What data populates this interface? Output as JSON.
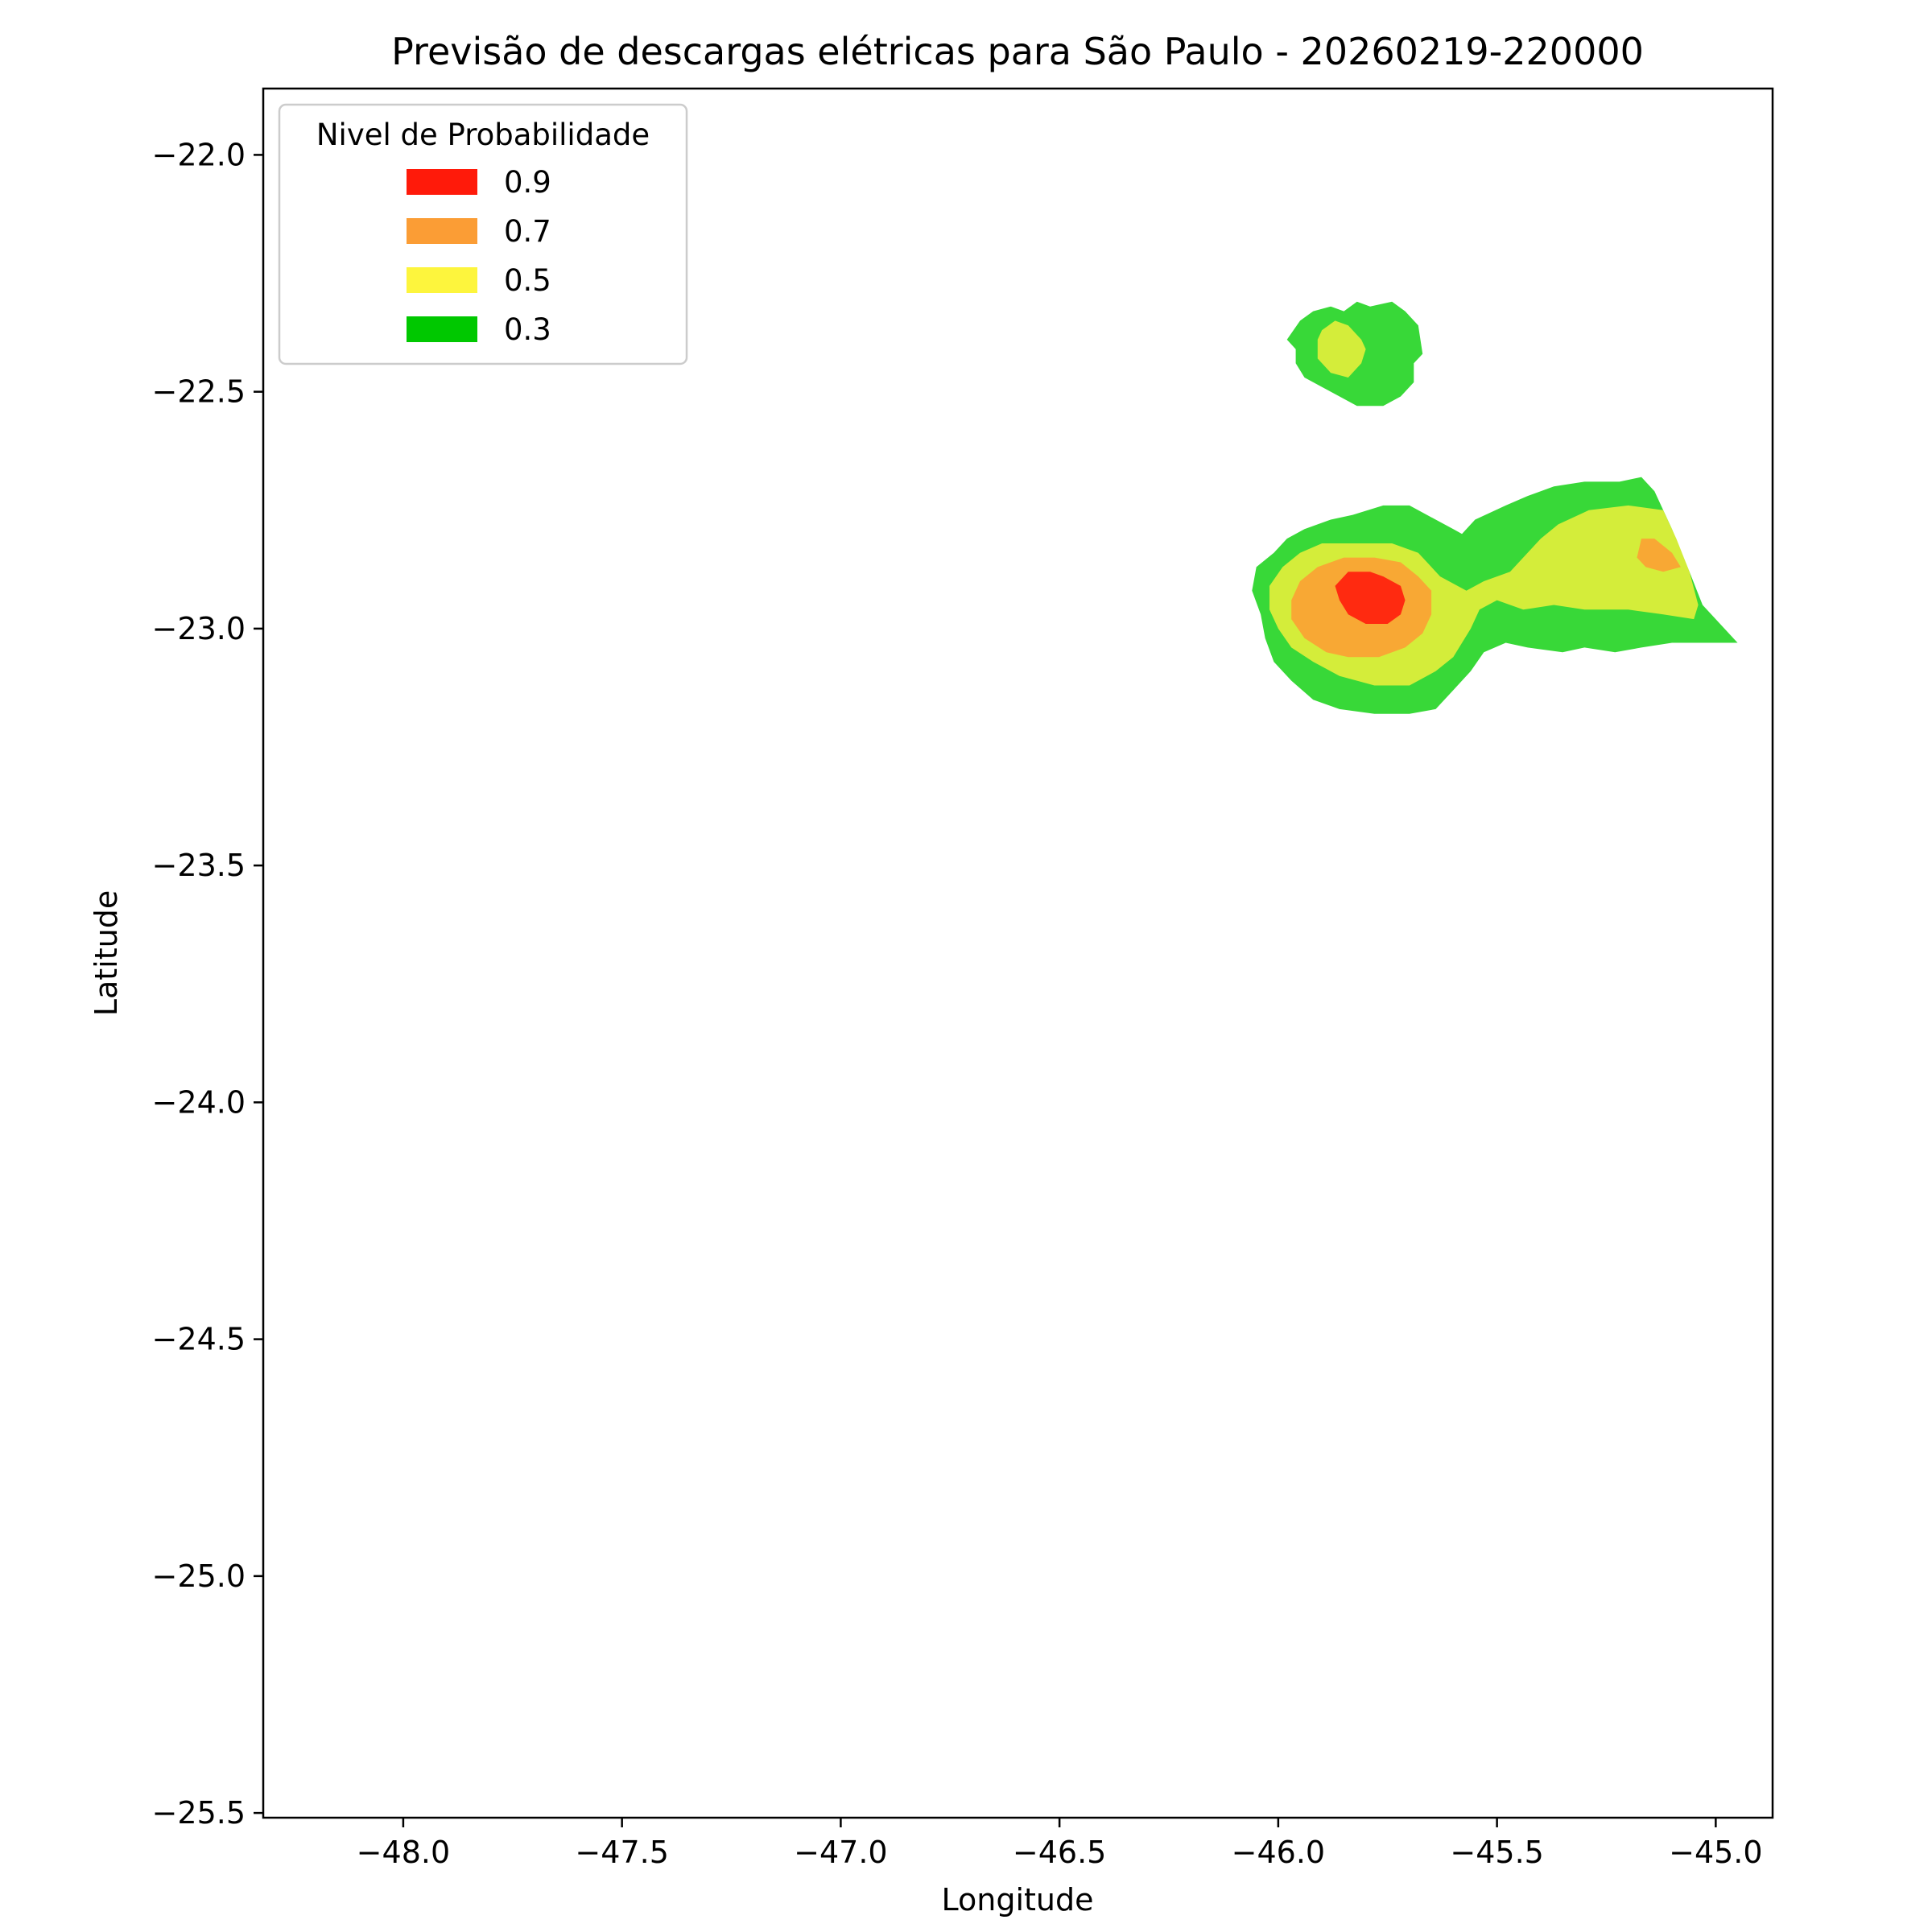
{
  "chart_data": {
    "type": "contour",
    "title": "Previsão de descargas elétricas para São Paulo - 20260219-220000",
    "xlabel": "Longitude",
    "ylabel": "Latitude",
    "xlim": [
      -48.32,
      -44.87
    ],
    "ylim": [
      -25.51,
      -21.86
    ],
    "x_ticks": [
      -48.0,
      -47.5,
      -47.0,
      -46.5,
      -46.0,
      -45.5,
      -45.0
    ],
    "x_tick_labels": [
      "−48.0",
      "−47.5",
      "−47.0",
      "−46.5",
      "−46.0",
      "−45.5",
      "−45.0"
    ],
    "y_ticks": [
      -22.0,
      -22.5,
      -23.0,
      -23.5,
      -24.0,
      -24.5,
      -25.0,
      -25.5
    ],
    "y_tick_labels": [
      "−22.0",
      "−22.5",
      "−23.0",
      "−23.5",
      "−24.0",
      "−24.5",
      "−25.0",
      "−25.5"
    ],
    "grid": false,
    "legend": {
      "title": "Nivel de Probabilidade",
      "placement": "upper-left",
      "entries": [
        {
          "label": "0.9",
          "color": "#ff1a0a"
        },
        {
          "label": "0.7",
          "color": "#fb9d35"
        },
        {
          "label": "0.5",
          "color": "#fdf53d"
        },
        {
          "label": "0.3",
          "color": "#00c800"
        }
      ]
    },
    "fill_colors": {
      "0.3": "#38d838",
      "0.5": "#d4ed3a",
      "0.7": "#f8a834",
      "0.9": "#ff2a10"
    },
    "regions": [
      {
        "level": "0.3",
        "points": [
          [
            -45.98,
            -22.39
          ],
          [
            -45.95,
            -22.35
          ],
          [
            -45.92,
            -22.33
          ],
          [
            -45.88,
            -22.32
          ],
          [
            -45.85,
            -22.33
          ],
          [
            -45.82,
            -22.31
          ],
          [
            -45.79,
            -22.32
          ],
          [
            -45.74,
            -22.31
          ],
          [
            -45.71,
            -22.33
          ],
          [
            -45.68,
            -22.36
          ],
          [
            -45.67,
            -22.42
          ],
          [
            -45.69,
            -22.44
          ],
          [
            -45.69,
            -22.48
          ],
          [
            -45.72,
            -22.51
          ],
          [
            -45.76,
            -22.53
          ],
          [
            -45.82,
            -22.53
          ],
          [
            -45.86,
            -22.51
          ],
          [
            -45.9,
            -22.49
          ],
          [
            -45.94,
            -22.47
          ],
          [
            -45.96,
            -22.44
          ],
          [
            -45.96,
            -22.41
          ]
        ]
      },
      {
        "level": "0.5",
        "points": [
          [
            -45.9,
            -22.37
          ],
          [
            -45.87,
            -22.35
          ],
          [
            -45.84,
            -22.36
          ],
          [
            -45.81,
            -22.39
          ],
          [
            -45.8,
            -22.41
          ],
          [
            -45.81,
            -22.44
          ],
          [
            -45.84,
            -22.47
          ],
          [
            -45.88,
            -22.46
          ],
          [
            -45.91,
            -22.43
          ],
          [
            -45.91,
            -22.39
          ]
        ]
      },
      {
        "level": "0.3",
        "points": [
          [
            -46.06,
            -22.92
          ],
          [
            -46.05,
            -22.87
          ],
          [
            -46.01,
            -22.84
          ],
          [
            -45.98,
            -22.81
          ],
          [
            -45.94,
            -22.79
          ],
          [
            -45.88,
            -22.77
          ],
          [
            -45.83,
            -22.76
          ],
          [
            -45.76,
            -22.74
          ],
          [
            -45.7,
            -22.74
          ],
          [
            -45.64,
            -22.77
          ],
          [
            -45.6,
            -22.79
          ],
          [
            -45.58,
            -22.8
          ],
          [
            -45.55,
            -22.77
          ],
          [
            -45.48,
            -22.74
          ],
          [
            -45.43,
            -22.72
          ],
          [
            -45.37,
            -22.7
          ],
          [
            -45.3,
            -22.69
          ],
          [
            -45.22,
            -22.69
          ],
          [
            -45.17,
            -22.68
          ],
          [
            -45.14,
            -22.71
          ],
          [
            -45.1,
            -22.79
          ],
          [
            -45.06,
            -22.88
          ],
          [
            -45.03,
            -22.95
          ],
          [
            -44.95,
            -23.03
          ],
          [
            -45.04,
            -23.03
          ],
          [
            -45.1,
            -23.03
          ],
          [
            -45.17,
            -23.04
          ],
          [
            -45.23,
            -23.05
          ],
          [
            -45.3,
            -23.04
          ],
          [
            -45.35,
            -23.05
          ],
          [
            -45.43,
            -23.04
          ],
          [
            -45.48,
            -23.03
          ],
          [
            -45.53,
            -23.05
          ],
          [
            -45.56,
            -23.09
          ],
          [
            -45.6,
            -23.13
          ],
          [
            -45.64,
            -23.17
          ],
          [
            -45.7,
            -23.18
          ],
          [
            -45.78,
            -23.18
          ],
          [
            -45.86,
            -23.17
          ],
          [
            -45.92,
            -23.15
          ],
          [
            -45.97,
            -23.11
          ],
          [
            -46.01,
            -23.07
          ],
          [
            -46.03,
            -23.02
          ],
          [
            -46.04,
            -22.97
          ]
        ]
      },
      {
        "level": "0.5",
        "points": [
          [
            -46.02,
            -22.91
          ],
          [
            -45.99,
            -22.87
          ],
          [
            -45.95,
            -22.84
          ],
          [
            -45.9,
            -22.82
          ],
          [
            -45.82,
            -22.82
          ],
          [
            -45.74,
            -22.82
          ],
          [
            -45.68,
            -22.84
          ],
          [
            -45.63,
            -22.89
          ],
          [
            -45.57,
            -22.92
          ],
          [
            -45.53,
            -22.9
          ],
          [
            -45.47,
            -22.88
          ],
          [
            -45.44,
            -22.85
          ],
          [
            -45.4,
            -22.81
          ],
          [
            -45.36,
            -22.78
          ],
          [
            -45.29,
            -22.75
          ],
          [
            -45.2,
            -22.74
          ],
          [
            -45.12,
            -22.75
          ],
          [
            -45.09,
            -22.81
          ],
          [
            -45.06,
            -22.88
          ],
          [
            -45.04,
            -22.95
          ],
          [
            -45.05,
            -22.98
          ],
          [
            -45.12,
            -22.97
          ],
          [
            -45.2,
            -22.96
          ],
          [
            -45.3,
            -22.96
          ],
          [
            -45.37,
            -22.95
          ],
          [
            -45.44,
            -22.96
          ],
          [
            -45.5,
            -22.94
          ],
          [
            -45.54,
            -22.96
          ],
          [
            -45.56,
            -23.0
          ],
          [
            -45.6,
            -23.06
          ],
          [
            -45.64,
            -23.09
          ],
          [
            -45.7,
            -23.12
          ],
          [
            -45.78,
            -23.12
          ],
          [
            -45.86,
            -23.1
          ],
          [
            -45.92,
            -23.07
          ],
          [
            -45.97,
            -23.04
          ],
          [
            -46.0,
            -23.0
          ],
          [
            -46.02,
            -22.96
          ]
        ]
      },
      {
        "level": "0.7",
        "points": [
          [
            -45.97,
            -22.94
          ],
          [
            -45.95,
            -22.9
          ],
          [
            -45.91,
            -22.87
          ],
          [
            -45.85,
            -22.85
          ],
          [
            -45.78,
            -22.85
          ],
          [
            -45.72,
            -22.86
          ],
          [
            -45.68,
            -22.89
          ],
          [
            -45.65,
            -22.92
          ],
          [
            -45.65,
            -22.97
          ],
          [
            -45.67,
            -23.01
          ],
          [
            -45.71,
            -23.04
          ],
          [
            -45.77,
            -23.06
          ],
          [
            -45.84,
            -23.06
          ],
          [
            -45.89,
            -23.05
          ],
          [
            -45.94,
            -23.02
          ],
          [
            -45.97,
            -22.98
          ]
        ]
      },
      {
        "level": "0.7",
        "points": [
          [
            -45.18,
            -22.85
          ],
          [
            -45.17,
            -22.81
          ],
          [
            -45.14,
            -22.81
          ],
          [
            -45.1,
            -22.84
          ],
          [
            -45.08,
            -22.87
          ],
          [
            -45.12,
            -22.88
          ],
          [
            -45.16,
            -22.87
          ]
        ]
      },
      {
        "level": "0.9",
        "points": [
          [
            -45.87,
            -22.91
          ],
          [
            -45.84,
            -22.88
          ],
          [
            -45.79,
            -22.88
          ],
          [
            -45.76,
            -22.89
          ],
          [
            -45.72,
            -22.91
          ],
          [
            -45.71,
            -22.94
          ],
          [
            -45.72,
            -22.97
          ],
          [
            -45.75,
            -22.99
          ],
          [
            -45.8,
            -22.99
          ],
          [
            -45.84,
            -22.97
          ],
          [
            -45.86,
            -22.94
          ]
        ]
      }
    ]
  }
}
